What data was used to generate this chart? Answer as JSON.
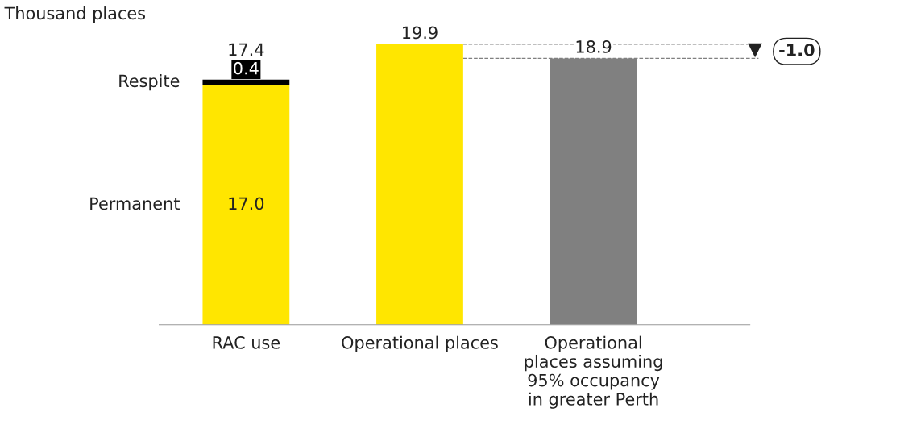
{
  "chart_data": {
    "type": "bar",
    "stacked": true,
    "ylabel": "Thousand places",
    "categories": [
      "RAC use",
      "Operational places",
      "Operational\nplaces assuming\n95% occupancy\nin greater Perth"
    ],
    "series": [
      {
        "name": "Permanent",
        "values": [
          17.0,
          19.9,
          18.9
        ],
        "colors": [
          "#ffe600",
          "#ffe600",
          "#808080"
        ],
        "value_labels": [
          "17.0",
          null,
          null
        ]
      },
      {
        "name": "Respite",
        "color": "#000000",
        "values": [
          0.4,
          null,
          null
        ],
        "value_labels": [
          "0.4",
          null,
          null
        ]
      }
    ],
    "totals": [
      "17.4",
      "19.9",
      "18.9"
    ],
    "grid": false,
    "legend": false,
    "ref_lines": [
      {
        "axis": "y",
        "value": 19.9,
        "color": "#808080",
        "line_style": "dashed"
      },
      {
        "axis": "y",
        "value": 18.9,
        "color": "#808080",
        "line_style": "dashed"
      }
    ],
    "annotations": [
      "-1.0"
    ]
  }
}
